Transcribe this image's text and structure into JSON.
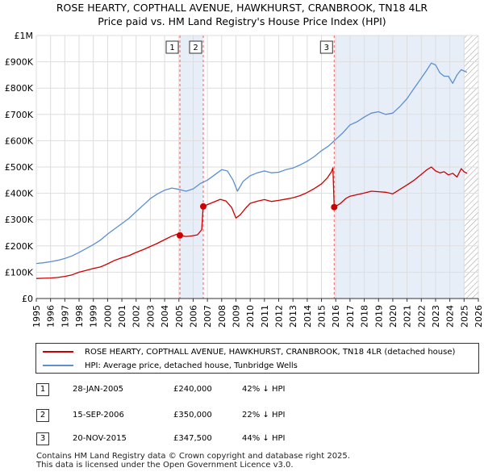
{
  "title_line1": "ROSE HEARTY, COPTHALL AVENUE, HAWKHURST, CRANBROOK, TN18 4LR",
  "title_line2": "Price paid vs. HM Land Registry's House Price Index (HPI)",
  "chart_data": {
    "type": "line",
    "xlim": [
      1995,
      2026
    ],
    "ylim": [
      0,
      1000000
    ],
    "yticks": [
      0,
      100000,
      200000,
      300000,
      400000,
      500000,
      600000,
      700000,
      800000,
      900000,
      1000000
    ],
    "ytick_labels": [
      "£0",
      "£100K",
      "£200K",
      "£300K",
      "£400K",
      "£500K",
      "£600K",
      "£700K",
      "£800K",
      "£900K",
      "£1M"
    ],
    "xticks": [
      "1995",
      "1996",
      "1997",
      "1998",
      "1999",
      "2000",
      "2001",
      "2002",
      "2003",
      "2004",
      "2005",
      "2006",
      "2007",
      "2008",
      "2009",
      "2010",
      "2011",
      "2012",
      "2013",
      "2014",
      "2015",
      "2016",
      "2017",
      "2018",
      "2019",
      "2020",
      "2021",
      "2022",
      "2023",
      "2024",
      "2025",
      "2026"
    ],
    "grid": true,
    "series": [
      {
        "name": "ROSE HEARTY, COPTHALL AVENUE, HAWKHURST, CRANBROOK, TN18 4LR (detached house)",
        "color": "#cc0000",
        "x": [
          1995.0,
          1995.5,
          1996.0,
          1996.5,
          1997.0,
          1997.5,
          1998.0,
          1998.5,
          1999.0,
          1999.5,
          2000.0,
          2000.5,
          2001.0,
          2001.5,
          2002.0,
          2002.5,
          2003.0,
          2003.5,
          2004.0,
          2004.5,
          2004.9,
          2005.07,
          2005.5,
          2005.9,
          2006.3,
          2006.6,
          2006.7,
          2007.0,
          2007.5,
          2007.9,
          2008.3,
          2008.7,
          2009.0,
          2009.3,
          2009.7,
          2010.0,
          2010.5,
          2011.0,
          2011.5,
          2012.0,
          2012.5,
          2013.0,
          2013.5,
          2014.0,
          2014.5,
          2015.0,
          2015.4,
          2015.7,
          2015.8,
          2015.89,
          2016.3,
          2016.7,
          2017.0,
          2017.5,
          2018.0,
          2018.5,
          2019.0,
          2019.5,
          2020.0,
          2020.5,
          2021.0,
          2021.5,
          2022.0,
          2022.4,
          2022.7,
          2023.0,
          2023.3,
          2023.6,
          2023.9,
          2024.2,
          2024.5,
          2024.8,
          2025.0,
          2025.2
        ],
        "values": [
          76000,
          77000,
          78000,
          80000,
          84000,
          90000,
          100000,
          107000,
          114000,
          120000,
          132000,
          145000,
          155000,
          163000,
          175000,
          186000,
          198000,
          210000,
          224000,
          237000,
          245000,
          240000,
          236000,
          238000,
          242000,
          262000,
          350000,
          357000,
          368000,
          377000,
          371000,
          346000,
          306000,
          318000,
          345000,
          362000,
          370000,
          376000,
          369000,
          373000,
          378000,
          383000,
          391000,
          403000,
          418000,
          436000,
          458000,
          482000,
          497000,
          347500,
          360000,
          380000,
          389000,
          395000,
          401000,
          408000,
          406000,
          404000,
          398000,
          415000,
          432000,
          450000,
          472000,
          490000,
          500000,
          485000,
          478000,
          482000,
          470000,
          476000,
          462000,
          494000,
          482000,
          476000
        ]
      },
      {
        "name": "HPI: Average price, detached house, Tunbridge Wells",
        "color": "#5b8fd0",
        "x": [
          1995.0,
          1995.5,
          1996.0,
          1996.5,
          1997.0,
          1997.5,
          1998.0,
          1998.5,
          1999.0,
          1999.5,
          2000.0,
          2000.5,
          2001.0,
          2001.5,
          2002.0,
          2002.5,
          2003.0,
          2003.5,
          2004.0,
          2004.5,
          2005.0,
          2005.5,
          2006.0,
          2006.5,
          2007.0,
          2007.5,
          2008.0,
          2008.4,
          2008.8,
          2009.1,
          2009.5,
          2010.0,
          2010.5,
          2011.0,
          2011.5,
          2012.0,
          2012.5,
          2013.0,
          2013.5,
          2014.0,
          2014.5,
          2015.0,
          2015.5,
          2016.0,
          2016.5,
          2017.0,
          2017.5,
          2018.0,
          2018.5,
          2019.0,
          2019.5,
          2020.0,
          2020.5,
          2021.0,
          2021.5,
          2022.0,
          2022.4,
          2022.7,
          2023.0,
          2023.3,
          2023.6,
          2023.9,
          2024.2,
          2024.5,
          2024.8,
          2025.0,
          2025.2
        ],
        "values": [
          133000,
          136000,
          140000,
          145000,
          152000,
          162000,
          175000,
          190000,
          205000,
          222000,
          245000,
          265000,
          285000,
          305000,
          330000,
          355000,
          380000,
          398000,
          412000,
          420000,
          415000,
          408000,
          417000,
          437000,
          450000,
          470000,
          490000,
          485000,
          450000,
          408000,
          445000,
          467000,
          478000,
          485000,
          478000,
          480000,
          490000,
          496000,
          508000,
          522000,
          540000,
          562000,
          580000,
          605000,
          630000,
          660000,
          672000,
          690000,
          705000,
          710000,
          700000,
          705000,
          730000,
          760000,
          800000,
          838000,
          870000,
          895000,
          888000,
          858000,
          845000,
          845000,
          818000,
          850000,
          870000,
          865000,
          860000
        ]
      }
    ],
    "sales": [
      {
        "num": "1",
        "x": 2005.07,
        "price": 240000,
        "date": "28-JAN-2005",
        "price_label": "£240,000",
        "hpi_label": "42% ↓ HPI"
      },
      {
        "num": "2",
        "x": 2006.71,
        "price": 350000,
        "date": "15-SEP-2006",
        "price_label": "£350,000",
        "hpi_label": "22% ↓ HPI"
      },
      {
        "num": "3",
        "x": 2015.89,
        "price": 347500,
        "date": "20-NOV-2015",
        "price_label": "£347,500",
        "hpi_label": "44% ↓ HPI"
      }
    ],
    "shaded_spans": [
      [
        2005.07,
        2006.71
      ],
      [
        2015.89,
        2025.0
      ]
    ],
    "hatch_from": 2025.0
  },
  "legend": {
    "property_label": "ROSE HEARTY, COPTHALL AVENUE, HAWKHURST, CRANBROOK, TN18 4LR (detached house)",
    "hpi_label": "HPI: Average price, detached house, Tunbridge Wells",
    "property_color": "#cc0000",
    "hpi_color": "#5b8fd0"
  },
  "sales_table": [
    {
      "num": "1",
      "date": "28-JAN-2005",
      "price": "£240,000",
      "hpi": "42% ↓ HPI"
    },
    {
      "num": "2",
      "date": "15-SEP-2006",
      "price": "£350,000",
      "hpi": "22% ↓ HPI"
    },
    {
      "num": "3",
      "date": "20-NOV-2015",
      "price": "£347,500",
      "hpi": "44% ↓ HPI"
    }
  ],
  "footer_line1": "Contains HM Land Registry data © Crown copyright and database right 2025.",
  "footer_line2": "This data is licensed under the Open Government Licence v3.0."
}
